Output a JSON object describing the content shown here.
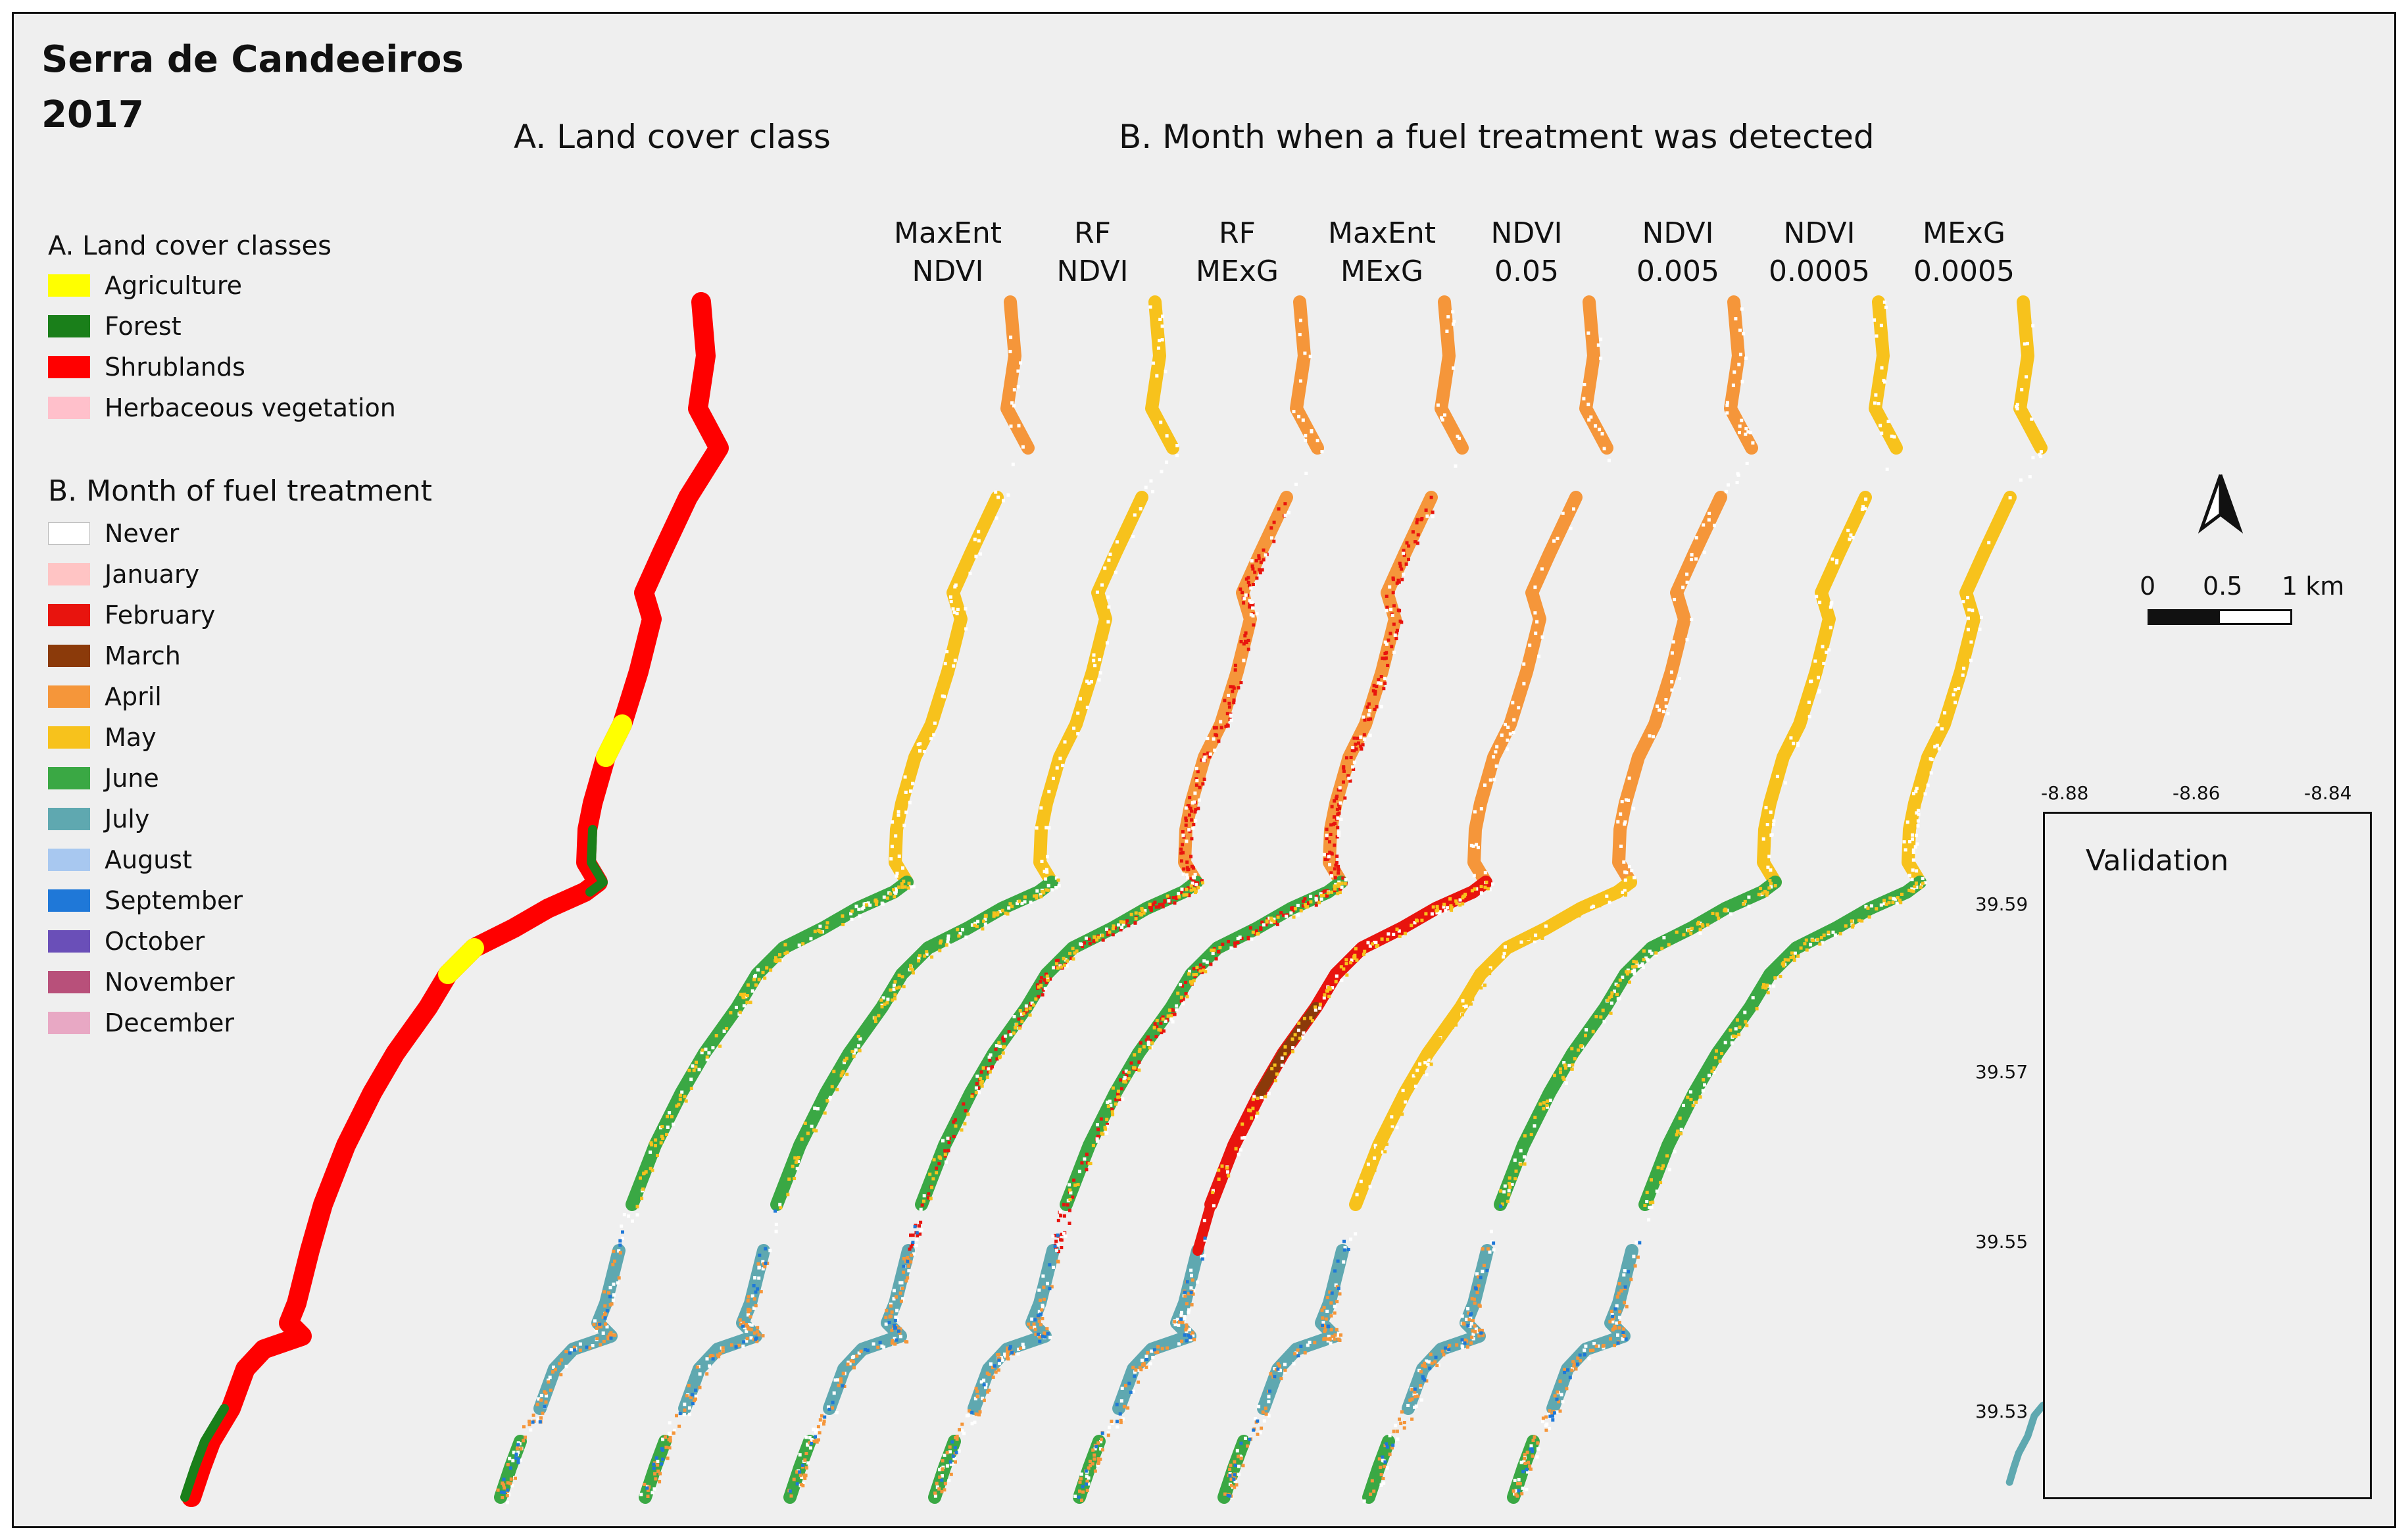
{
  "title": "Serra de Candeeiros\n2017",
  "headings": {
    "land_cover": "A. Land cover class",
    "month": "B. Month when a fuel treatment was detected"
  },
  "columns": [
    {
      "line1": "MaxEnt",
      "line2": "NDVI"
    },
    {
      "line1": "RF",
      "line2": "NDVI"
    },
    {
      "line1": "RF",
      "line2": "MExG"
    },
    {
      "line1": "MaxEnt",
      "line2": "MExG"
    },
    {
      "line1": "NDVI",
      "line2": "0.05"
    },
    {
      "line1": "NDVI",
      "line2": "0.005"
    },
    {
      "line1": "NDVI",
      "line2": "0.0005"
    },
    {
      "line1": "MExG",
      "line2": "0.0005"
    }
  ],
  "legend_a": {
    "title": "A. Land cover classes",
    "items": [
      {
        "label": "Agriculture",
        "color": "#ffff00"
      },
      {
        "label": "Forest",
        "color": "#1a7f1a"
      },
      {
        "label": "Shrublands",
        "color": "#ff0000"
      },
      {
        "label": "Herbaceous vegetation",
        "color": "#ffc0cb"
      }
    ]
  },
  "legend_b": {
    "title": "B. Month of fuel treatment",
    "items": [
      {
        "label": "Never",
        "color": "#ffffff"
      },
      {
        "label": "January",
        "color": "#ffc4c4"
      },
      {
        "label": "February",
        "color": "#e8140e"
      },
      {
        "label": "March",
        "color": "#8b3a0a"
      },
      {
        "label": "April",
        "color": "#f5963a"
      },
      {
        "label": "May",
        "color": "#f7c21c"
      },
      {
        "label": "June",
        "color": "#3aa844"
      },
      {
        "label": "July",
        "color": "#5fa8b0"
      },
      {
        "label": "August",
        "color": "#a8c8f0"
      },
      {
        "label": "September",
        "color": "#1f78d8"
      },
      {
        "label": "October",
        "color": "#6a4fb8"
      },
      {
        "label": "November",
        "color": "#b8507a"
      },
      {
        "label": "December",
        "color": "#e8a8c4"
      }
    ]
  },
  "scale": {
    "labels": [
      "0",
      "0.5",
      "1 km"
    ]
  },
  "north_arrow": "north-arrow-icon",
  "inset": {
    "title": "Validation",
    "x_ticks": [
      "-8.88",
      "-8.86",
      "-8.84"
    ],
    "y_ticks": [
      "39.59",
      "39.57",
      "39.55",
      "39.53"
    ]
  }
}
